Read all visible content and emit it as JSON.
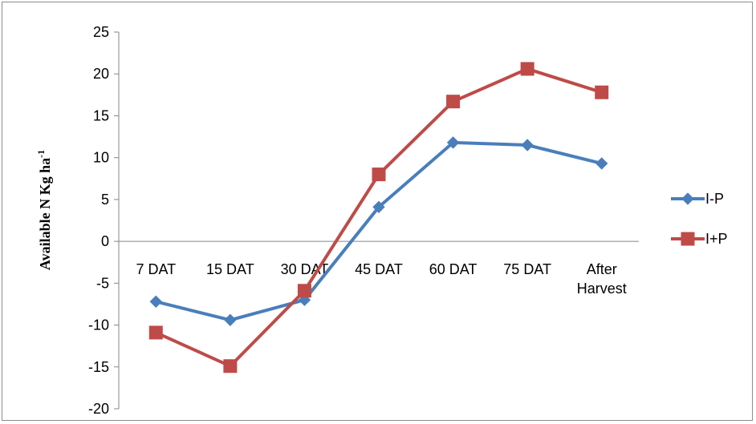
{
  "chart_data": {
    "type": "line",
    "title": "",
    "xlabel": "",
    "ylabel": "Available N Kg ha",
    "ylabel_sup": "-1",
    "categories": [
      "7 DAT",
      "15 DAT",
      "30 DAT",
      "45 DAT",
      "60 DAT",
      "75 DAT",
      "After Harvest"
    ],
    "ylim": [
      -20,
      25
    ],
    "yticks": [
      25,
      20,
      15,
      10,
      5,
      0,
      -5,
      -10,
      -15,
      -20
    ],
    "grid": false,
    "legend_position": "right",
    "series": [
      {
        "name": "I-P",
        "color": "#4a7ebb",
        "marker": "diamond",
        "values": [
          -7.2,
          -9.4,
          -7.0,
          4.1,
          11.8,
          11.5,
          9.3
        ]
      },
      {
        "name": "I+P",
        "color": "#be4b48",
        "marker": "square",
        "values": [
          -10.9,
          -14.9,
          -5.9,
          8.0,
          16.7,
          20.6,
          17.8
        ]
      }
    ]
  }
}
